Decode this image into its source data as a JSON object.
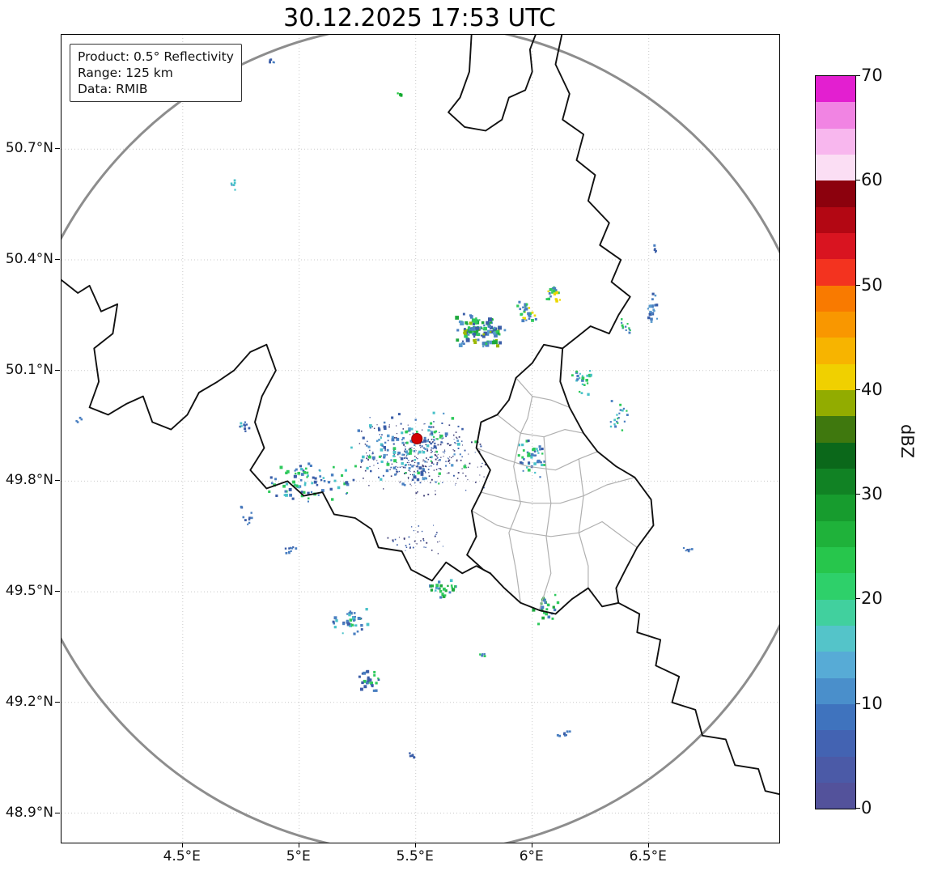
{
  "title": "30.12.2025 17:53 UTC",
  "info_box": {
    "lines": [
      "Product: 0.5° Reflectivity",
      "Range: 125 km",
      "Data: RMIB"
    ]
  },
  "axes": {
    "x_ticks": [
      {
        "lon": 4.5,
        "label": "4.5°E"
      },
      {
        "lon": 5.0,
        "label": "5°E"
      },
      {
        "lon": 5.5,
        "label": "5.5°E"
      },
      {
        "lon": 6.0,
        "label": "6°E"
      },
      {
        "lon": 6.5,
        "label": "6.5°E"
      }
    ],
    "y_ticks": [
      {
        "lat": 50.7,
        "label": "50.7°N"
      },
      {
        "lat": 50.4,
        "label": "50.4°N"
      },
      {
        "lat": 50.1,
        "label": "50.1°N"
      },
      {
        "lat": 49.8,
        "label": "49.8°N"
      },
      {
        "lat": 49.5,
        "label": "49.5°N"
      },
      {
        "lat": 49.2,
        "label": "49.2°N"
      },
      {
        "lat": 48.9,
        "label": "48.9°N"
      }
    ]
  },
  "map": {
    "extent": {
      "lon_min": 3.98,
      "lon_max": 7.06,
      "lat_min": 48.82,
      "lat_max": 51.01
    },
    "grid_color": "#c9c9c9",
    "border_color": "#111111",
    "admin_color": "#b0b0b0",
    "range_ring": {
      "center_lon": 5.505,
      "center_lat": 49.915,
      "radius_km": 125,
      "color": "#8d8d8d"
    },
    "radar_site": {
      "lon": 5.505,
      "lat": 49.915,
      "color": "#d40000",
      "edge": "#8b0000"
    },
    "borders": [
      [
        [
          5.74,
          51.02
        ],
        [
          5.73,
          50.91
        ],
        [
          5.69,
          50.84
        ],
        [
          5.64,
          50.8
        ],
        [
          5.71,
          50.76
        ],
        [
          5.8,
          50.75
        ],
        [
          5.87,
          50.78
        ],
        [
          5.9,
          50.84
        ],
        [
          5.97,
          50.86
        ],
        [
          6.0,
          50.91
        ],
        [
          5.99,
          50.97
        ],
        [
          6.02,
          51.02
        ]
      ],
      [
        [
          6.13,
          51.02
        ],
        [
          6.1,
          50.93
        ],
        [
          6.16,
          50.85
        ],
        [
          6.13,
          50.78
        ],
        [
          6.22,
          50.74
        ],
        [
          6.19,
          50.67
        ],
        [
          6.27,
          50.63
        ],
        [
          6.24,
          50.56
        ],
        [
          6.33,
          50.5
        ],
        [
          6.29,
          50.44
        ],
        [
          6.38,
          50.4
        ],
        [
          6.34,
          50.34
        ],
        [
          6.42,
          50.3
        ],
        [
          6.37,
          50.25
        ],
        [
          6.33,
          50.2
        ],
        [
          6.25,
          50.22
        ],
        [
          6.19,
          50.19
        ],
        [
          6.13,
          50.16
        ]
      ],
      [
        [
          6.13,
          50.16
        ],
        [
          6.05,
          50.17
        ],
        [
          6.0,
          50.12
        ],
        [
          5.93,
          50.08
        ],
        [
          5.9,
          50.02
        ],
        [
          5.85,
          49.98
        ],
        [
          5.78,
          49.96
        ],
        [
          5.76,
          49.89
        ],
        [
          5.82,
          49.83
        ],
        [
          5.78,
          49.77
        ],
        [
          5.74,
          49.72
        ],
        [
          5.76,
          49.65
        ],
        [
          5.72,
          49.6
        ],
        [
          5.79,
          49.56
        ],
        [
          5.82,
          49.55
        ]
      ],
      [
        [
          5.82,
          49.55
        ],
        [
          5.88,
          49.51
        ],
        [
          5.95,
          49.47
        ],
        [
          6.03,
          49.45
        ],
        [
          6.1,
          49.44
        ],
        [
          6.17,
          49.48
        ],
        [
          6.24,
          49.51
        ],
        [
          6.3,
          49.46
        ],
        [
          6.37,
          49.47
        ]
      ],
      [
        [
          6.13,
          50.16
        ],
        [
          6.12,
          50.07
        ],
        [
          6.16,
          50.0
        ],
        [
          6.22,
          49.93
        ],
        [
          6.28,
          49.88
        ],
        [
          6.36,
          49.84
        ],
        [
          6.44,
          49.81
        ],
        [
          6.51,
          49.75
        ],
        [
          6.52,
          49.68
        ],
        [
          6.45,
          49.62
        ],
        [
          6.4,
          49.56
        ],
        [
          6.36,
          49.51
        ],
        [
          6.37,
          49.47
        ]
      ],
      [
        [
          6.37,
          49.47
        ],
        [
          6.46,
          49.44
        ],
        [
          6.45,
          49.39
        ],
        [
          6.55,
          49.37
        ],
        [
          6.53,
          49.3
        ],
        [
          6.63,
          49.27
        ],
        [
          6.6,
          49.2
        ],
        [
          6.7,
          49.18
        ],
        [
          6.73,
          49.11
        ],
        [
          6.83,
          49.1
        ],
        [
          6.87,
          49.03
        ],
        [
          6.97,
          49.02
        ],
        [
          7.0,
          48.96
        ],
        [
          7.07,
          48.95
        ]
      ],
      [
        [
          3.97,
          50.35
        ],
        [
          4.05,
          50.31
        ],
        [
          4.1,
          50.33
        ],
        [
          4.15,
          50.26
        ],
        [
          4.22,
          50.28
        ],
        [
          4.2,
          50.2
        ],
        [
          4.12,
          50.16
        ],
        [
          4.14,
          50.07
        ],
        [
          4.1,
          50.0
        ],
        [
          4.18,
          49.98
        ],
        [
          4.26,
          50.01
        ],
        [
          4.33,
          50.03
        ],
        [
          4.37,
          49.96
        ],
        [
          4.45,
          49.94
        ],
        [
          4.52,
          49.98
        ],
        [
          4.57,
          50.04
        ],
        [
          4.65,
          50.07
        ],
        [
          4.72,
          50.1
        ],
        [
          4.79,
          50.15
        ],
        [
          4.86,
          50.17
        ],
        [
          4.9,
          50.1
        ],
        [
          4.84,
          50.03
        ],
        [
          4.81,
          49.96
        ],
        [
          4.85,
          49.89
        ],
        [
          4.79,
          49.83
        ],
        [
          4.86,
          49.78
        ],
        [
          4.95,
          49.8
        ],
        [
          5.02,
          49.76
        ],
        [
          5.1,
          49.77
        ],
        [
          5.15,
          49.71
        ],
        [
          5.24,
          49.7
        ],
        [
          5.31,
          49.67
        ],
        [
          5.34,
          49.62
        ],
        [
          5.44,
          49.61
        ],
        [
          5.48,
          49.56
        ],
        [
          5.57,
          49.53
        ],
        [
          5.63,
          49.58
        ],
        [
          5.7,
          49.55
        ],
        [
          5.76,
          49.57
        ],
        [
          5.82,
          49.55
        ]
      ]
    ],
    "admin_borders": [
      [
        [
          5.93,
          50.08
        ],
        [
          6.0,
          50.03
        ],
        [
          6.08,
          50.02
        ],
        [
          6.16,
          50.0
        ]
      ],
      [
        [
          6.0,
          50.03
        ],
        [
          5.98,
          49.97
        ],
        [
          5.95,
          49.93
        ]
      ],
      [
        [
          5.85,
          49.98
        ],
        [
          5.95,
          49.93
        ],
        [
          6.05,
          49.92
        ],
        [
          6.14,
          49.94
        ],
        [
          6.22,
          49.93
        ]
      ],
      [
        [
          5.76,
          49.89
        ],
        [
          5.88,
          49.86
        ],
        [
          5.98,
          49.84
        ],
        [
          6.1,
          49.83
        ],
        [
          6.2,
          49.86
        ],
        [
          6.28,
          49.88
        ]
      ],
      [
        [
          5.78,
          49.77
        ],
        [
          5.9,
          49.75
        ],
        [
          6.0,
          49.74
        ],
        [
          6.12,
          49.74
        ],
        [
          6.22,
          49.76
        ],
        [
          6.32,
          49.79
        ],
        [
          6.44,
          49.81
        ]
      ],
      [
        [
          5.74,
          49.72
        ],
        [
          5.85,
          49.68
        ],
        [
          5.97,
          49.66
        ],
        [
          6.08,
          49.65
        ],
        [
          6.2,
          49.66
        ],
        [
          6.3,
          49.69
        ],
        [
          6.45,
          49.62
        ]
      ],
      [
        [
          5.95,
          49.93
        ],
        [
          5.92,
          49.84
        ],
        [
          5.95,
          49.74
        ],
        [
          5.9,
          49.66
        ],
        [
          5.93,
          49.56
        ],
        [
          5.95,
          49.47
        ]
      ],
      [
        [
          6.05,
          49.92
        ],
        [
          6.06,
          49.83
        ],
        [
          6.08,
          49.74
        ],
        [
          6.06,
          49.65
        ],
        [
          6.08,
          49.55
        ],
        [
          6.03,
          49.45
        ]
      ],
      [
        [
          6.2,
          49.86
        ],
        [
          6.22,
          49.76
        ],
        [
          6.2,
          49.66
        ],
        [
          6.24,
          49.57
        ],
        [
          6.24,
          49.51
        ]
      ]
    ],
    "echo_clusters": [
      {
        "name": "central-clutter",
        "lon": 5.52,
        "lat": 49.87,
        "dlon": 0.3,
        "dlat": 0.11,
        "n": 320,
        "smin": 1,
        "smax": 2,
        "seed": 11,
        "colors": [
          "#3f3f78",
          "#3b5ea8",
          "#3f3f78"
        ]
      },
      {
        "name": "central-echoes",
        "lon": 5.48,
        "lat": 49.89,
        "dlon": 0.28,
        "dlat": 0.11,
        "n": 150,
        "smin": 2,
        "smax": 4,
        "seed": 12,
        "colors": [
          "#4a7fc1",
          "#3b5ea8",
          "#5899cd",
          "#49c2c9",
          "#2ec95c"
        ]
      },
      {
        "name": "west-arm",
        "lon": 5.05,
        "lat": 49.8,
        "dlon": 0.2,
        "dlat": 0.06,
        "n": 80,
        "smin": 2,
        "smax": 4,
        "seed": 13,
        "colors": [
          "#4a7fc1",
          "#3b5ea8",
          "#49c2c9",
          "#2ec95c"
        ]
      },
      {
        "name": "north-blob",
        "lon": 5.77,
        "lat": 50.21,
        "dlon": 0.11,
        "dlat": 0.05,
        "n": 130,
        "smin": 2,
        "smax": 5,
        "seed": 14,
        "colors": [
          "#4a7fc1",
          "#3b5ea8",
          "#5899cd",
          "#2ec95c",
          "#1da83c",
          "#9ab800"
        ]
      },
      {
        "name": "north-blob-east",
        "lon": 5.97,
        "lat": 50.26,
        "dlon": 0.05,
        "dlat": 0.03,
        "n": 30,
        "smin": 2,
        "smax": 4,
        "seed": 15,
        "colors": [
          "#4a7fc1",
          "#2ec95c",
          "#ecd800"
        ]
      },
      {
        "name": "ne-spots",
        "lon": 6.09,
        "lat": 50.31,
        "dlon": 0.04,
        "dlat": 0.03,
        "n": 22,
        "smin": 2,
        "smax": 4,
        "seed": 16,
        "colors": [
          "#2ec95c",
          "#4a7fc1",
          "#ecd800"
        ]
      },
      {
        "name": "east-upper-spots",
        "lon": 6.22,
        "lat": 50.08,
        "dlon": 0.06,
        "dlat": 0.05,
        "n": 24,
        "smin": 2,
        "smax": 4,
        "seed": 17,
        "colors": [
          "#4a7fc1",
          "#2ec95c",
          "#49c2c9"
        ]
      },
      {
        "name": "east-streak",
        "lon": 6.51,
        "lat": 50.27,
        "dlon": 0.025,
        "dlat": 0.045,
        "n": 22,
        "smin": 2,
        "smax": 4,
        "seed": 18,
        "colors": [
          "#4a7fc1",
          "#3b5ea8",
          "#5899cd"
        ]
      },
      {
        "name": "east-spot",
        "lon": 6.4,
        "lat": 50.22,
        "dlon": 0.03,
        "dlat": 0.025,
        "n": 12,
        "smin": 2,
        "smax": 3,
        "seed": 19,
        "colors": [
          "#2ec95c",
          "#4a7fc1"
        ]
      },
      {
        "name": "east-mid-spots",
        "lon": 6.36,
        "lat": 49.98,
        "dlon": 0.05,
        "dlat": 0.05,
        "n": 20,
        "smin": 2,
        "smax": 3,
        "seed": 20,
        "colors": [
          "#4a7fc1",
          "#2ec95c",
          "#49c2c9"
        ]
      },
      {
        "name": "east-lux-edge",
        "lon": 5.99,
        "lat": 49.87,
        "dlon": 0.08,
        "dlat": 0.06,
        "n": 45,
        "smin": 2,
        "smax": 4,
        "seed": 21,
        "colors": [
          "#4a7fc1",
          "#3b5ea8",
          "#2ec95c",
          "#49c2c9"
        ]
      },
      {
        "name": "southeast-dash",
        "lon": 6.67,
        "lat": 49.62,
        "dlon": 0.025,
        "dlat": 0.012,
        "n": 8,
        "smin": 2,
        "smax": 3,
        "seed": 22,
        "colors": [
          "#4a7fc1",
          "#3b5ea8"
        ]
      },
      {
        "name": "south-cluster",
        "lon": 5.22,
        "lat": 49.42,
        "dlon": 0.09,
        "dlat": 0.045,
        "n": 40,
        "smin": 2,
        "smax": 4,
        "seed": 23,
        "colors": [
          "#4a7fc1",
          "#3b5ea8",
          "#2ec95c",
          "#49c2c9"
        ]
      },
      {
        "name": "south-cluster2",
        "lon": 5.3,
        "lat": 49.26,
        "dlon": 0.055,
        "dlat": 0.04,
        "n": 26,
        "smin": 2,
        "smax": 4,
        "seed": 24,
        "colors": [
          "#4a7fc1",
          "#3b5ea8",
          "#2ec95c"
        ]
      },
      {
        "name": "south-green",
        "lon": 5.62,
        "lat": 49.51,
        "dlon": 0.07,
        "dlat": 0.03,
        "n": 30,
        "smin": 2,
        "smax": 4,
        "seed": 25,
        "colors": [
          "#2ec95c",
          "#1da83c",
          "#4a7fc1",
          "#49c2c9"
        ]
      },
      {
        "name": "south-lux-spots",
        "lon": 6.05,
        "lat": 49.46,
        "dlon": 0.06,
        "dlat": 0.05,
        "n": 26,
        "smin": 2,
        "smax": 4,
        "seed": 26,
        "colors": [
          "#2ec95c",
          "#4a7fc1",
          "#1da83c"
        ]
      },
      {
        "name": "southwest-dash",
        "lon": 4.96,
        "lat": 49.62,
        "dlon": 0.035,
        "dlat": 0.015,
        "n": 10,
        "smin": 2,
        "smax": 3,
        "seed": 27,
        "colors": [
          "#4a7fc1",
          "#3b5ea8"
        ]
      },
      {
        "name": "west-edge-spots",
        "lon": 4.76,
        "lat": 49.95,
        "dlon": 0.03,
        "dlat": 0.025,
        "n": 12,
        "smin": 2,
        "smax": 3,
        "seed": 28,
        "colors": [
          "#4a7fc1",
          "#3b5ea8",
          "#49c2c9"
        ]
      },
      {
        "name": "west-low-spots",
        "lon": 4.77,
        "lat": 49.71,
        "dlon": 0.03,
        "dlat": 0.03,
        "n": 10,
        "smin": 2,
        "smax": 3,
        "seed": 39,
        "colors": [
          "#4a7fc1",
          "#3b5ea8"
        ]
      },
      {
        "name": "far-west-dot",
        "lon": 4.05,
        "lat": 49.97,
        "dlon": 0.015,
        "dlat": 0.01,
        "n": 4,
        "smin": 2,
        "smax": 3,
        "seed": 29,
        "colors": [
          "#4a7fc1"
        ]
      },
      {
        "name": "northwest-dash",
        "lon": 4.71,
        "lat": 50.6,
        "dlon": 0.015,
        "dlat": 0.02,
        "n": 6,
        "smin": 2,
        "smax": 3,
        "seed": 30,
        "colors": [
          "#49c2c9",
          "#4a7fc1"
        ]
      },
      {
        "name": "top-left-dash",
        "lon": 4.87,
        "lat": 50.94,
        "dlon": 0.03,
        "dlat": 0.008,
        "n": 6,
        "smin": 2,
        "smax": 3,
        "seed": 31,
        "colors": [
          "#4a7fc1",
          "#3b5ea8"
        ]
      },
      {
        "name": "top-green-dash",
        "lon": 5.43,
        "lat": 50.85,
        "dlon": 0.025,
        "dlat": 0.006,
        "n": 6,
        "smin": 2,
        "smax": 3,
        "seed": 32,
        "colors": [
          "#1fc43c",
          "#12a82e"
        ]
      },
      {
        "name": "south-sparse",
        "lon": 5.5,
        "lat": 49.64,
        "dlon": 0.14,
        "dlat": 0.05,
        "n": 40,
        "smin": 1,
        "smax": 2,
        "seed": 33,
        "colors": [
          "#3f3f78",
          "#3b5ea8"
        ]
      },
      {
        "name": "bottom-dash",
        "lon": 6.13,
        "lat": 49.12,
        "dlon": 0.03,
        "dlat": 0.012,
        "n": 8,
        "smin": 2,
        "smax": 3,
        "seed": 34,
        "colors": [
          "#4a7fc1",
          "#3b5ea8"
        ]
      },
      {
        "name": "bottom-dash2",
        "lon": 5.48,
        "lat": 49.06,
        "dlon": 0.02,
        "dlat": 0.008,
        "n": 5,
        "smin": 2,
        "smax": 3,
        "seed": 35,
        "colors": [
          "#3b5ea8"
        ]
      },
      {
        "name": "right-upper-dot",
        "lon": 6.52,
        "lat": 50.43,
        "dlon": 0.015,
        "dlat": 0.015,
        "n": 5,
        "smin": 2,
        "smax": 3,
        "seed": 37,
        "colors": [
          "#4a7fc1",
          "#3b5ea8"
        ]
      },
      {
        "name": "mid-south-dash",
        "lon": 5.78,
        "lat": 49.33,
        "dlon": 0.02,
        "dlat": 0.01,
        "n": 5,
        "smin": 2,
        "smax": 3,
        "seed": 38,
        "colors": [
          "#2ec95c",
          "#4a7fc1"
        ]
      }
    ]
  },
  "colorbar": {
    "label": "dBZ",
    "vmin": 0,
    "vmax": 70,
    "tick_values": [
      0,
      10,
      20,
      30,
      40,
      50,
      60,
      70
    ],
    "colors": [
      "#53529b",
      "#4b5aa7",
      "#4363b2",
      "#3f73be",
      "#4a8fcb",
      "#57abd6",
      "#54c4c9",
      "#41d09e",
      "#2ed06a",
      "#27c64c",
      "#1fb23a",
      "#179c2e",
      "#118224",
      "#0b681a",
      "#3f780e",
      "#92ac00",
      "#f0d000",
      "#f7b400",
      "#f99700",
      "#f97a00",
      "#f3331f",
      "#d91420",
      "#b30713",
      "#8c010d",
      "#fbdef4",
      "#f8b7ee",
      "#f184e3",
      "#e31fd0"
    ]
  }
}
